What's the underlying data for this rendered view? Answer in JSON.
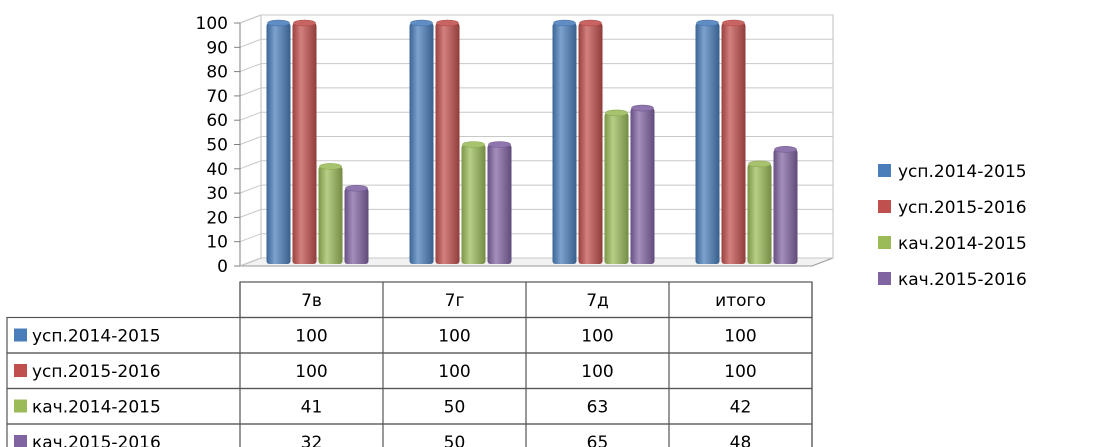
{
  "chart_data": {
    "type": "bar",
    "title": "",
    "xlabel": "",
    "ylabel": "",
    "ylim": [
      0,
      100
    ],
    "yticks": [
      0,
      10,
      20,
      30,
      40,
      50,
      60,
      70,
      80,
      90,
      100
    ],
    "grid": true,
    "legend_position": "right",
    "categories": [
      "7в",
      "7г",
      "7д",
      "итого"
    ],
    "series": [
      {
        "name": "усп.2014-2015",
        "values": [
          100,
          100,
          100,
          100
        ],
        "color": "#4a7ebb"
      },
      {
        "name": "усп.2015-2016",
        "values": [
          100,
          100,
          100,
          100
        ],
        "color": "#c0504d"
      },
      {
        "name": "кач.2014-2015",
        "values": [
          41,
          50,
          63,
          42
        ],
        "color": "#9bbb59"
      },
      {
        "name": "кач.2015-2016",
        "values": [
          32,
          50,
          65,
          48
        ],
        "color": "#8064a2"
      }
    ],
    "data_table": true
  }
}
